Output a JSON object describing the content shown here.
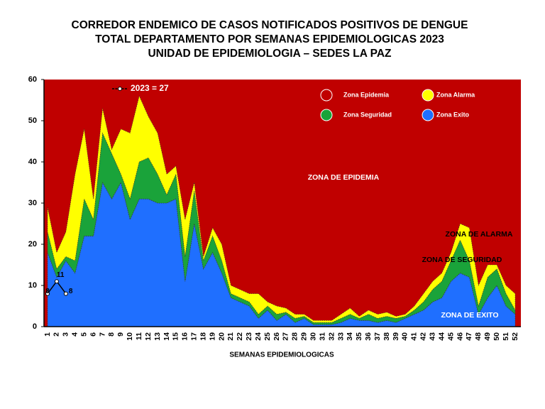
{
  "chart_data": {
    "type": "stacked_area",
    "title": [
      "CORREDOR ENDEMICO DE CASOS NOTIFICADOS POSITIVOS DE DENGUE",
      "TOTAL DEPARTAMENTO POR SEMANAS EPIDEMIOLOGICAS 2023",
      "UNIDAD DE EPIDEMIOLOGIA – SEDES LA PAZ"
    ],
    "x_label": "SEMANAS EPIDEMIOLOGICAS",
    "categories": [
      "1",
      "2",
      "3",
      "4",
      "5",
      "6",
      "7",
      "8",
      "9",
      "10",
      "11",
      "12",
      "13",
      "14",
      "15",
      "16",
      "17",
      "18",
      "19",
      "20",
      "21",
      "22",
      "23",
      "24",
      "25",
      "26",
      "27",
      "28",
      "29",
      "30",
      "31",
      "32",
      "33",
      "34",
      "35",
      "36",
      "37",
      "38",
      "39",
      "40",
      "41",
      "42",
      "43",
      "44",
      "45",
      "46",
      "47",
      "48",
      "49",
      "50",
      "51",
      "52"
    ],
    "ylim": [
      0,
      60
    ],
    "yticks": [
      0,
      10,
      20,
      30,
      40,
      50,
      60
    ],
    "background_zone": {
      "name": "Zona Epidemia",
      "color": "#c00000"
    },
    "series": [
      {
        "name": "Zona Exito",
        "color": "#1f6fff",
        "values": [
          18,
          12,
          16,
          13,
          22,
          22,
          35,
          31,
          35,
          26,
          31,
          31,
          30,
          30,
          31,
          11,
          25,
          14,
          18,
          13,
          7,
          6,
          5,
          2,
          4,
          1.5,
          3,
          1,
          2,
          0.5,
          0.5,
          0.5,
          1,
          2,
          1.5,
          1.5,
          1,
          1.5,
          1,
          2,
          3,
          4,
          6,
          7,
          11,
          13,
          12,
          3,
          7,
          10,
          5,
          3
        ]
      },
      {
        "name": "Zona Seguridad",
        "color": "#1aa33a",
        "values": [
          5,
          2,
          1,
          3,
          9,
          4,
          12,
          11,
          2,
          5,
          9,
          10,
          7,
          2,
          6,
          6,
          8,
          2,
          4,
          3,
          1,
          1,
          1,
          1,
          1,
          1.5,
          0.5,
          1,
          0.5,
          0.5,
          0.5,
          0.5,
          1,
          1,
          0.5,
          1.5,
          1,
          1,
          1,
          0.5,
          1,
          2,
          3,
          4,
          5,
          8,
          4,
          2,
          5,
          4,
          3,
          1
        ]
      },
      {
        "name": "Zona Alarma",
        "color": "#ffff00",
        "values": [
          6,
          4,
          6,
          21,
          17,
          5,
          6,
          1,
          11,
          16,
          16,
          10,
          10,
          5,
          2,
          9,
          2,
          1,
          2,
          4,
          2,
          2,
          2,
          5,
          1,
          2,
          1,
          1,
          0.5,
          0.5,
          0.5,
          0.5,
          1,
          1.5,
          0.5,
          1,
          1,
          1,
          0.5,
          0.5,
          1,
          2,
          2,
          2,
          2,
          4,
          8,
          5,
          3,
          1,
          2,
          4
        ]
      }
    ],
    "line": {
      "name": "2023",
      "color": "#000000",
      "values": [
        8,
        11,
        8,
        null,
        null,
        null,
        null,
        null,
        null,
        null,
        null,
        null,
        null,
        null,
        null,
        null,
        null,
        null,
        null,
        null,
        null,
        null,
        null,
        null,
        null,
        null,
        null,
        null,
        null,
        null,
        null,
        null,
        null,
        null,
        null,
        null,
        null,
        null,
        null,
        null,
        null,
        null,
        null,
        null,
        null,
        null,
        null,
        null,
        null,
        null,
        null,
        null
      ]
    },
    "line_annotation": "2023 = 27",
    "zone_labels": [
      "ZONA DE EPIDEMIA",
      "ZONA DE ALARMA",
      "ZONA DE  SEGURIDAD",
      "ZONA DE  EXITO"
    ]
  }
}
